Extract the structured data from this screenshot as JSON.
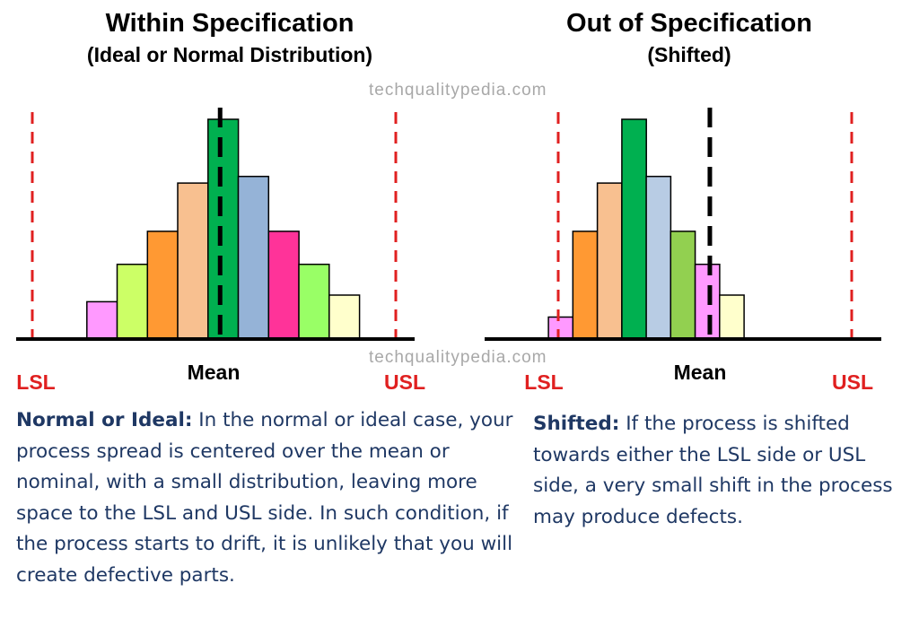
{
  "watermark": "techqualitypedia.com",
  "colors": {
    "spec_limit": "#e02020",
    "mean_line": "#000000",
    "text_blue": "#1f3864"
  },
  "chart_data": [
    {
      "type": "bar",
      "title": "Within Specification",
      "subtitle": "(Ideal or Normal Distribution)",
      "x_labels": {
        "lsl": "LSL",
        "mean": "Mean",
        "usl": "USL"
      },
      "x_range": [
        0,
        12
      ],
      "ylim": [
        0,
        100
      ],
      "lsl_x": 0,
      "usl_x": 12,
      "mean_x": 6.2,
      "bars": [
        {
          "x": 1.8,
          "value": 17,
          "color": "#ff99ff"
        },
        {
          "x": 2.8,
          "value": 34,
          "color": "#ccff66"
        },
        {
          "x": 3.8,
          "value": 49,
          "color": "#ff9933"
        },
        {
          "x": 4.8,
          "value": 71,
          "color": "#f8c090"
        },
        {
          "x": 5.8,
          "value": 100,
          "color": "#00b050"
        },
        {
          "x": 6.8,
          "value": 74,
          "color": "#95b3d7"
        },
        {
          "x": 7.8,
          "value": 49,
          "color": "#ff3399"
        },
        {
          "x": 8.8,
          "value": 34,
          "color": "#99ff66"
        },
        {
          "x": 9.8,
          "value": 20,
          "color": "#ffffcc"
        }
      ],
      "description": {
        "bold": "Normal or Ideal:",
        "text": " In the normal or ideal case, your process spread is centered over the mean or nominal, with a small distribution, leaving more space to the LSL and USL side. In such condition, if the process starts to drift, it is unlikely that you will create defective parts."
      }
    },
    {
      "type": "bar",
      "title": "Out of Specification",
      "subtitle": "(Shifted)",
      "x_labels": {
        "lsl": "LSL",
        "mean": "Mean",
        "usl": "USL"
      },
      "x_range": [
        0,
        12
      ],
      "ylim": [
        0,
        100
      ],
      "lsl_x": 0,
      "usl_x": 12,
      "mean_x": 6.2,
      "bars": [
        {
          "x": -0.4,
          "value": 10,
          "color": "#ff99ff"
        },
        {
          "x": 0.6,
          "value": 49,
          "color": "#ff9933"
        },
        {
          "x": 1.6,
          "value": 71,
          "color": "#f8c090"
        },
        {
          "x": 2.6,
          "value": 100,
          "color": "#00b050"
        },
        {
          "x": 3.6,
          "value": 74,
          "color": "#b8cce4"
        },
        {
          "x": 4.6,
          "value": 49,
          "color": "#92d050"
        },
        {
          "x": 5.6,
          "value": 34,
          "color": "#ff99ff"
        },
        {
          "x": 6.6,
          "value": 20,
          "color": "#ffffcc"
        }
      ],
      "description": {
        "bold": "Shifted:",
        "text": " If the process is shifted towards either the LSL side or USL side, a very small shift in the process may produce defects."
      }
    }
  ]
}
